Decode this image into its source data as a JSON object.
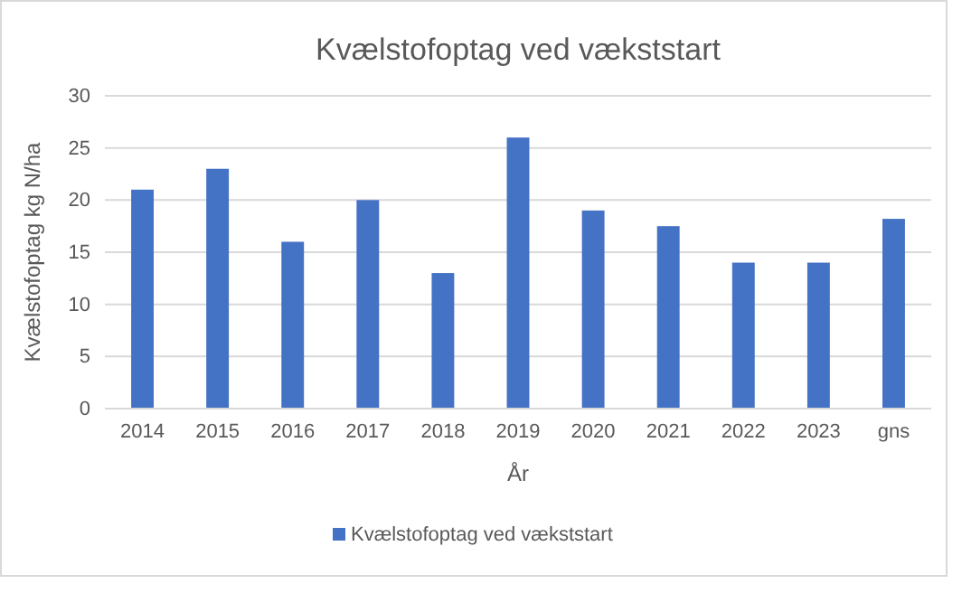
{
  "chart_data": {
    "type": "bar",
    "title": "Kvælstofoptag ved vækststart",
    "xlabel": "År",
    "ylabel": "Kvælstofoptag kg N/ha",
    "categories": [
      "2014",
      "2015",
      "2016",
      "2017",
      "2018",
      "2019",
      "2020",
      "2021",
      "2022",
      "2023",
      "gns"
    ],
    "series": [
      {
        "name": "Kvælstofoptag ved vækststart",
        "color": "#4472c4",
        "values": [
          21,
          23,
          16,
          20,
          13,
          26,
          19,
          17.5,
          14,
          14,
          18.2
        ]
      }
    ],
    "ylim": [
      0,
      30
    ],
    "yticks": [
      0,
      5,
      10,
      15,
      20,
      25,
      30
    ],
    "grid": "y",
    "legend": "bottom"
  }
}
